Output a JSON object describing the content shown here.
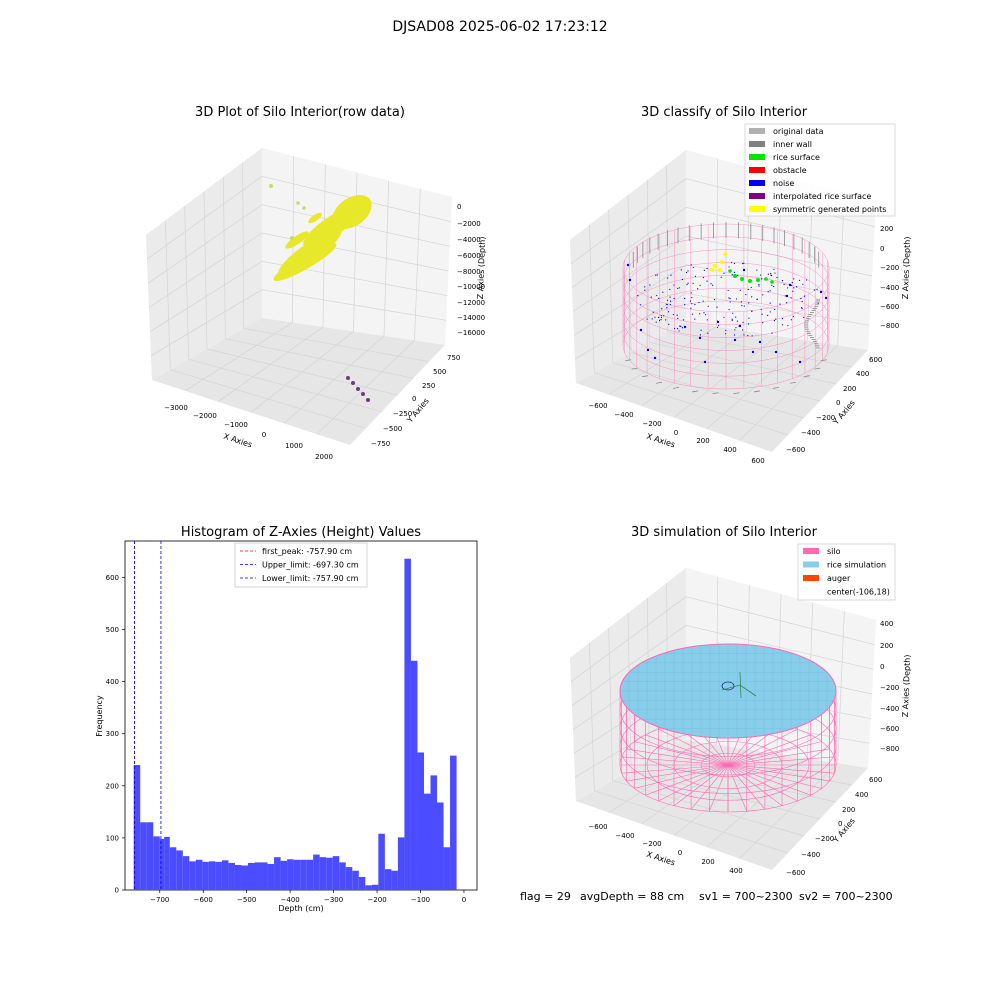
{
  "figure": {
    "suptitle": "DJSAD08 2025-06-02 17:23:12",
    "footer": {
      "flag": "flag = 29",
      "avg_depth": "avgDepth = 88 cm",
      "sv1": "sv1 = 700~2300",
      "sv2": "sv2 = 700~2300"
    }
  },
  "panels": {
    "raw": {
      "title": "3D Plot of Silo Interior(row data)",
      "xlabel": "X Axies",
      "ylabel": "Y Axies",
      "zlabel": "Z Axies (Depth)",
      "x_ticks": [
        "−3000",
        "−2000",
        "−1000",
        "0",
        "1000",
        "2000"
      ],
      "y_ticks": [
        "−750",
        "−500",
        "−250",
        "0",
        "250",
        "500",
        "750"
      ],
      "z_ticks": [
        "0",
        "−2000",
        "−4000",
        "−6000",
        "−8000",
        "−10000",
        "−12000",
        "−14000",
        "−16000"
      ],
      "point_colors": {
        "main": "#e8e82a",
        "sparse": "#b8e070",
        "outlier": "#6b3d7a"
      }
    },
    "classify": {
      "title": "3D classify of Silo Interior",
      "xlabel": "X Axies",
      "ylabel": "Y Axies",
      "zlabel": "Z Axies (Depth)",
      "x_ticks": [
        "−600",
        "−400",
        "−200",
        "0",
        "200",
        "400",
        "600"
      ],
      "y_ticks": [
        "−600",
        "−400",
        "−200",
        "0",
        "200",
        "400",
        "600"
      ],
      "z_ticks": [
        "200",
        "0",
        "−200",
        "−400",
        "−600",
        "−800"
      ],
      "legend": [
        {
          "label": "original data",
          "color": "#b0b0b0"
        },
        {
          "label": "inner wall",
          "color": "#808080"
        },
        {
          "label": "rice surface",
          "color": "#00e600"
        },
        {
          "label": "obstacle",
          "color": "#ff0000"
        },
        {
          "label": "noise",
          "color": "#0000ee"
        },
        {
          "label": "interpolated rice surface",
          "color": "#800080"
        },
        {
          "label": "symmetric generated points",
          "color": "#ffff00"
        }
      ]
    },
    "simulation": {
      "title": "3D simulation of Silo Interior",
      "xlabel": "X Axies",
      "ylabel": "Y Axies",
      "zlabel": "Z Axies (Depth)",
      "x_ticks": [
        "−600",
        "−400",
        "−200",
        "0",
        "200",
        "400"
      ],
      "y_ticks": [
        "−600",
        "−400",
        "−200",
        "0",
        "200",
        "400",
        "600"
      ],
      "z_ticks": [
        "400",
        "200",
        "0",
        "−200",
        "−400",
        "−600",
        "−800"
      ],
      "legend": [
        {
          "label": "silo",
          "color": "#ff69b4"
        },
        {
          "label": "rice simulation",
          "color": "#87ceeb"
        },
        {
          "label": "auger",
          "color": "#ff4500"
        },
        {
          "label": "center(-106,18)",
          "color": ""
        }
      ]
    }
  },
  "chart_data": {
    "type": "bar",
    "title": "Histogram of Z-Axies (Height) Values",
    "xlabel": "Depth (cm)",
    "ylabel": "Frequency",
    "xlim": [
      -780,
      30
    ],
    "ylim": [
      0,
      670
    ],
    "x_ticks": [
      -700,
      -600,
      -500,
      -400,
      -300,
      -200,
      -100,
      0
    ],
    "y_ticks": [
      0,
      100,
      200,
      300,
      400,
      500,
      600
    ],
    "bar_color": "#4b4bff",
    "bins": [
      {
        "x0": -760,
        "x1": -745,
        "y": 240
      },
      {
        "x0": -745,
        "x1": -730,
        "y": 130
      },
      {
        "x0": -730,
        "x1": -715,
        "y": 130
      },
      {
        "x0": -715,
        "x1": -700,
        "y": 103
      },
      {
        "x0": -700,
        "x1": -690,
        "y": 98
      },
      {
        "x0": -690,
        "x1": -677,
        "y": 102
      },
      {
        "x0": -677,
        "x1": -662,
        "y": 82
      },
      {
        "x0": -662,
        "x1": -647,
        "y": 76
      },
      {
        "x0": -647,
        "x1": -632,
        "y": 65
      },
      {
        "x0": -632,
        "x1": -617,
        "y": 55
      },
      {
        "x0": -617,
        "x1": -602,
        "y": 58
      },
      {
        "x0": -602,
        "x1": -587,
        "y": 54
      },
      {
        "x0": -587,
        "x1": -572,
        "y": 55
      },
      {
        "x0": -572,
        "x1": -557,
        "y": 54
      },
      {
        "x0": -557,
        "x1": -542,
        "y": 57
      },
      {
        "x0": -542,
        "x1": -527,
        "y": 52
      },
      {
        "x0": -527,
        "x1": -512,
        "y": 48
      },
      {
        "x0": -512,
        "x1": -497,
        "y": 47
      },
      {
        "x0": -497,
        "x1": -482,
        "y": 52
      },
      {
        "x0": -482,
        "x1": -467,
        "y": 53
      },
      {
        "x0": -467,
        "x1": -452,
        "y": 53
      },
      {
        "x0": -452,
        "x1": -437,
        "y": 50
      },
      {
        "x0": -437,
        "x1": -422,
        "y": 63
      },
      {
        "x0": -422,
        "x1": -407,
        "y": 56
      },
      {
        "x0": -407,
        "x1": -392,
        "y": 59
      },
      {
        "x0": -392,
        "x1": -377,
        "y": 58
      },
      {
        "x0": -377,
        "x1": -362,
        "y": 58
      },
      {
        "x0": -362,
        "x1": -347,
        "y": 58
      },
      {
        "x0": -347,
        "x1": -332,
        "y": 68
      },
      {
        "x0": -332,
        "x1": -317,
        "y": 63
      },
      {
        "x0": -317,
        "x1": -302,
        "y": 62
      },
      {
        "x0": -302,
        "x1": -287,
        "y": 65
      },
      {
        "x0": -287,
        "x1": -272,
        "y": 53
      },
      {
        "x0": -272,
        "x1": -257,
        "y": 44
      },
      {
        "x0": -257,
        "x1": -242,
        "y": 37
      },
      {
        "x0": -242,
        "x1": -227,
        "y": 25
      },
      {
        "x0": -227,
        "x1": -212,
        "y": 9
      },
      {
        "x0": -212,
        "x1": -197,
        "y": 10
      },
      {
        "x0": -197,
        "x1": -182,
        "y": 108
      },
      {
        "x0": -182,
        "x1": -167,
        "y": 40
      },
      {
        "x0": -167,
        "x1": -152,
        "y": 37
      },
      {
        "x0": -152,
        "x1": -137,
        "y": 101
      },
      {
        "x0": -137,
        "x1": -122,
        "y": 636
      },
      {
        "x0": -122,
        "x1": -107,
        "y": 440
      },
      {
        "x0": -107,
        "x1": -92,
        "y": 264
      },
      {
        "x0": -92,
        "x1": -77,
        "y": 185
      },
      {
        "x0": -77,
        "x1": -62,
        "y": 220
      },
      {
        "x0": -62,
        "x1": -47,
        "y": 168
      },
      {
        "x0": -47,
        "x1": -32,
        "y": 82
      },
      {
        "x0": -32,
        "x1": -17,
        "y": 258
      }
    ],
    "vlines": [
      {
        "x": -757.9,
        "color": "#ff0000",
        "label": "first_peak: -757.90 cm"
      },
      {
        "x": -697.3,
        "color": "#0000ff",
        "label": "Upper_limit: -697.30 cm"
      },
      {
        "x": -757.9,
        "color": "#0000ff",
        "label": "Lower_limit: -757.90 cm"
      }
    ]
  }
}
